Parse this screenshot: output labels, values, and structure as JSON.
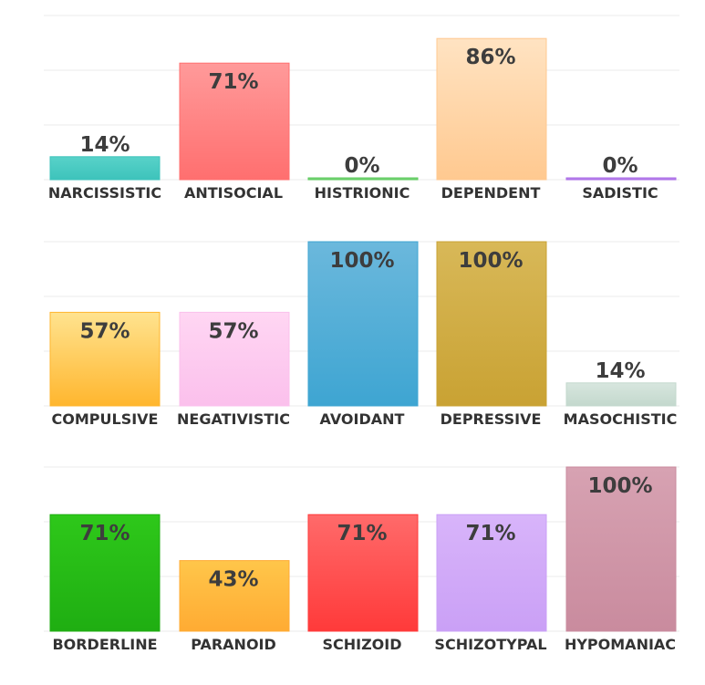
{
  "chart_data": [
    {
      "type": "bar",
      "categories": [
        "NARCISSISTIC",
        "ANTISOCIAL",
        "HISTRIONIC",
        "DEPENDENT",
        "SADISTIC"
      ],
      "values": [
        14,
        71,
        0,
        86,
        0
      ],
      "value_labels": [
        "14%",
        "71%",
        "0%",
        "86%",
        "0%"
      ],
      "colors": [
        [
          "#58d2c9",
          "#3dc3bb"
        ],
        [
          "#ff9a9a",
          "#ff6f6f"
        ],
        [
          "#8fe08f",
          "#5cc95c"
        ],
        [
          "#ffe3c2",
          "#ffc990"
        ],
        [
          "#c79cf3",
          "#a86ae6"
        ]
      ],
      "ylim": [
        0,
        100
      ],
      "grid": true
    },
    {
      "type": "bar",
      "categories": [
        "COMPULSIVE",
        "NEGATIVISTIC",
        "AVOIDANT",
        "DEPRESSIVE",
        "MASOCHISTIC"
      ],
      "values": [
        57,
        57,
        100,
        100,
        14
      ],
      "value_labels": [
        "57%",
        "57%",
        "100%",
        "100%",
        "14%"
      ],
      "colors": [
        [
          "#ffe38f",
          "#ffb62e"
        ],
        [
          "#ffd6f3",
          "#fbc0ec"
        ],
        [
          "#6bb8dc",
          "#3ea5d2"
        ],
        [
          "#d8b858",
          "#c9a233"
        ],
        [
          "#d7e6de",
          "#c3d8cd"
        ]
      ],
      "ylim": [
        0,
        100
      ],
      "grid": true
    },
    {
      "type": "bar",
      "categories": [
        "BORDERLINE",
        "PARANOID",
        "SCHIZOID",
        "SCHIZOTYPAL",
        "HYPOMANIAC"
      ],
      "values": [
        71,
        43,
        71,
        71,
        100
      ],
      "value_labels": [
        "71%",
        "43%",
        "71%",
        "71%",
        "100%"
      ],
      "colors": [
        [
          "#2ec81a",
          "#1fae12"
        ],
        [
          "#ffc64a",
          "#ffab33"
        ],
        [
          "#ff6a6a",
          "#ff3a3a"
        ],
        [
          "#d8b4fa",
          "#caa0f6"
        ],
        [
          "#d7a2b2",
          "#c98b9e"
        ]
      ],
      "ylim": [
        0,
        100
      ],
      "grid": true
    }
  ]
}
